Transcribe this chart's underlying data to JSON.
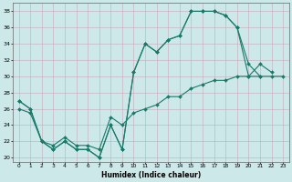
{
  "xlabel": "Humidex (Indice chaleur)",
  "bg_color": "#cce8e8",
  "grid_color": "#aacccc",
  "line_color": "#1a7a6a",
  "xlim": [
    -0.5,
    23.5
  ],
  "ylim": [
    19.5,
    39
  ],
  "yticks": [
    20,
    22,
    24,
    26,
    28,
    30,
    32,
    34,
    36,
    38
  ],
  "xticks": [
    0,
    1,
    2,
    3,
    4,
    5,
    6,
    7,
    8,
    9,
    10,
    11,
    12,
    13,
    14,
    15,
    16,
    17,
    18,
    19,
    20,
    21,
    22,
    23
  ],
  "line1_x": [
    0,
    1,
    2,
    3,
    4,
    5,
    6,
    7,
    8,
    9,
    10,
    11,
    12,
    13,
    14,
    15,
    16,
    17,
    18,
    19,
    20,
    21
  ],
  "line1_y": [
    27,
    26,
    22,
    21,
    22,
    21,
    21,
    20,
    24,
    21,
    30.5,
    34,
    33,
    34.5,
    35,
    38,
    38,
    38,
    37.5,
    36,
    31.5,
    30
  ],
  "line2_x": [
    0,
    1,
    2,
    3,
    4,
    5,
    6,
    7,
    8,
    9,
    10,
    11,
    12,
    13,
    14,
    15,
    16,
    17,
    18,
    19,
    20,
    21,
    22
  ],
  "line2_y": [
    27,
    26,
    22,
    21,
    22,
    21,
    21,
    20,
    24,
    21,
    30.5,
    34,
    33,
    34.5,
    35,
    38,
    38,
    38,
    37.5,
    36,
    30,
    31.5,
    30.5
  ],
  "line3_x": [
    0,
    1,
    2,
    3,
    4,
    5,
    6,
    7,
    8,
    9,
    10,
    11,
    12,
    13,
    14,
    15,
    16,
    17,
    18,
    19,
    20,
    21,
    22,
    23
  ],
  "line3_y": [
    26,
    25.5,
    22,
    21.5,
    22.5,
    21.5,
    21.5,
    21,
    25,
    24,
    25.5,
    26,
    26.5,
    27.5,
    27.5,
    28.5,
    29,
    29.5,
    29.5,
    30,
    30,
    30,
    30,
    30
  ]
}
